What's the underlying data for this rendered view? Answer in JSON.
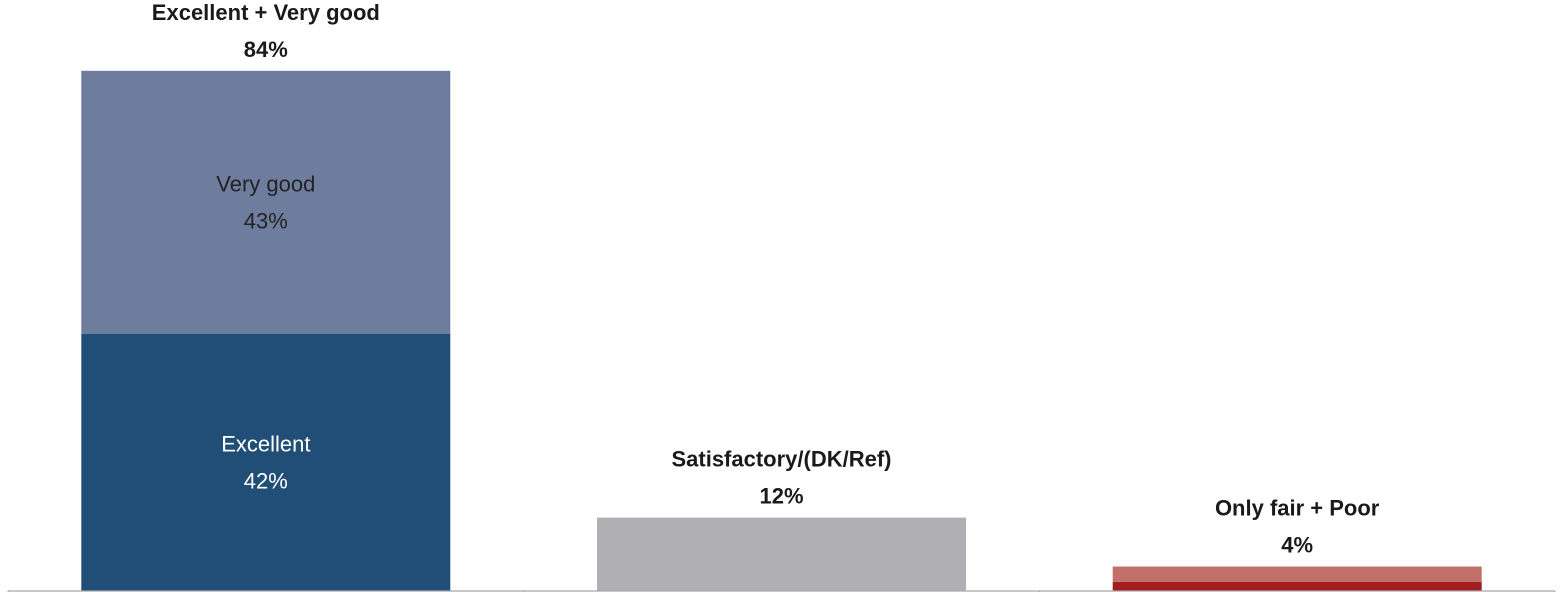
{
  "chart_data": {
    "type": "bar",
    "stacked": true,
    "categories": [
      "Excellent + Very good",
      "Satisfactory/(DK/Ref)",
      "Only fair + Poor"
    ],
    "series": [
      {
        "name": "Excellent",
        "values": [
          42,
          0,
          0
        ],
        "color": "#214e76",
        "text_color": "#ffffff"
      },
      {
        "name": "Very good",
        "values": [
          43,
          0,
          0
        ],
        "color": "#6e7d9e",
        "text_color": "#222222"
      },
      {
        "name": "Satisfactory/(DK/Ref)",
        "values": [
          0,
          12,
          0
        ],
        "color": "#b0b0b4"
      },
      {
        "name": "Poor",
        "values": [
          0,
          0,
          1.5
        ],
        "color": "#a21d1f"
      },
      {
        "name": "Only fair",
        "values": [
          0,
          0,
          2.5
        ],
        "color": "#c07068"
      }
    ],
    "segment_labels": [
      {
        "category": 0,
        "series": 0,
        "name": "Excellent",
        "value": "42%"
      },
      {
        "category": 0,
        "series": 1,
        "name": "Very good",
        "value": "43%"
      }
    ],
    "totals": [
      {
        "name": "Excellent + Very good",
        "value": "84%"
      },
      {
        "name": "Satisfactory/(DK/Ref)",
        "value": "12%"
      },
      {
        "name": "Only fair + Poor",
        "value": "4%"
      }
    ],
    "ylim": [
      0,
      100
    ],
    "grid": false,
    "legend": "none"
  }
}
